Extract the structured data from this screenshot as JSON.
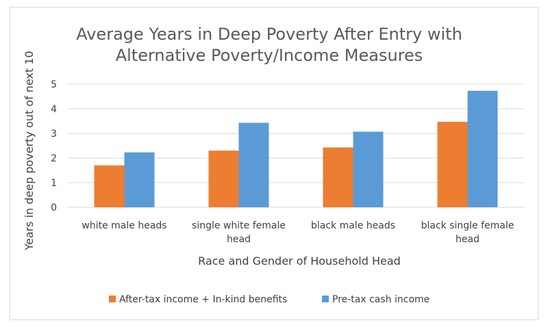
{
  "chart_data": {
    "type": "bar",
    "title_lines": [
      "Average Years in Deep Poverty After Entry with",
      "Alternative Poverty/Income Measures"
    ],
    "xlabel": "Race and Gender of Household Head",
    "ylabel": "Years in deep poverty out of next 10",
    "categories": [
      [
        "white male heads"
      ],
      [
        "single white  female",
        "head"
      ],
      [
        "black male heads"
      ],
      [
        "black single female",
        "head"
      ]
    ],
    "series": [
      {
        "name": "After-tax income + In-kind benefits",
        "color": "#ED7D31",
        "values": [
          1.7,
          2.3,
          2.43,
          3.47
        ]
      },
      {
        "name": "Pre-tax cash income",
        "color": "#5B9BD5",
        "values": [
          2.23,
          3.43,
          3.07,
          4.73
        ]
      }
    ],
    "ylim": [
      0,
      5
    ],
    "yticks": [
      0,
      1,
      2,
      3,
      4,
      5
    ],
    "grid": true,
    "legend": "bottom"
  }
}
